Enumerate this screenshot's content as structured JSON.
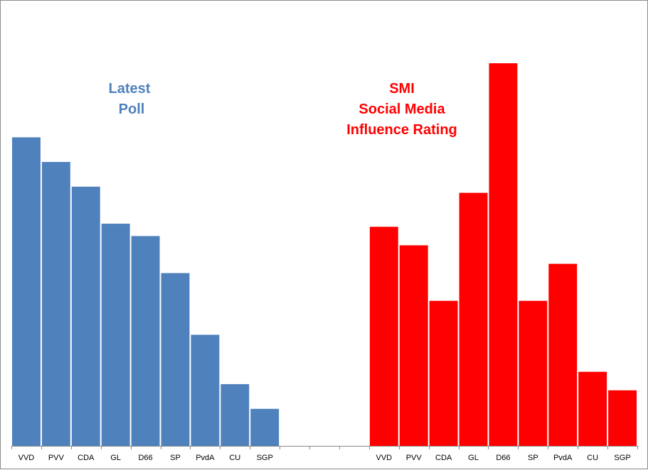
{
  "chart_data": {
    "type": "bar",
    "categories": [
      "VVD",
      "PVV",
      "CDA",
      "GL",
      "D66",
      "SP",
      "PvdA",
      "CU",
      "SGP",
      "",
      "",
      "",
      "VVD",
      "PVV",
      "CDA",
      "GL",
      "D66",
      "SP",
      "PvdA",
      "CU",
      "SGP"
    ],
    "series": [
      {
        "color": "#4f81bd",
        "values": [
          50,
          46,
          42,
          36,
          34,
          28,
          18,
          10,
          6,
          null,
          null,
          null,
          null,
          null,
          null,
          null,
          null,
          null,
          null,
          null,
          null
        ]
      },
      {
        "color": "#ff0000",
        "values": [
          null,
          null,
          null,
          null,
          null,
          null,
          null,
          null,
          null,
          null,
          null,
          null,
          35.5,
          32.5,
          23.5,
          41,
          62,
          23.5,
          29.5,
          12,
          9
        ]
      }
    ],
    "ylim": [
      0,
      65
    ],
    "grid": false,
    "legend": "none",
    "annotations": {
      "poll_line1": "Latest",
      "poll_line2": "Poll",
      "smi_line1": "SMI",
      "smi_line2": "Social Media",
      "smi_line3": "Influence Rating"
    }
  }
}
